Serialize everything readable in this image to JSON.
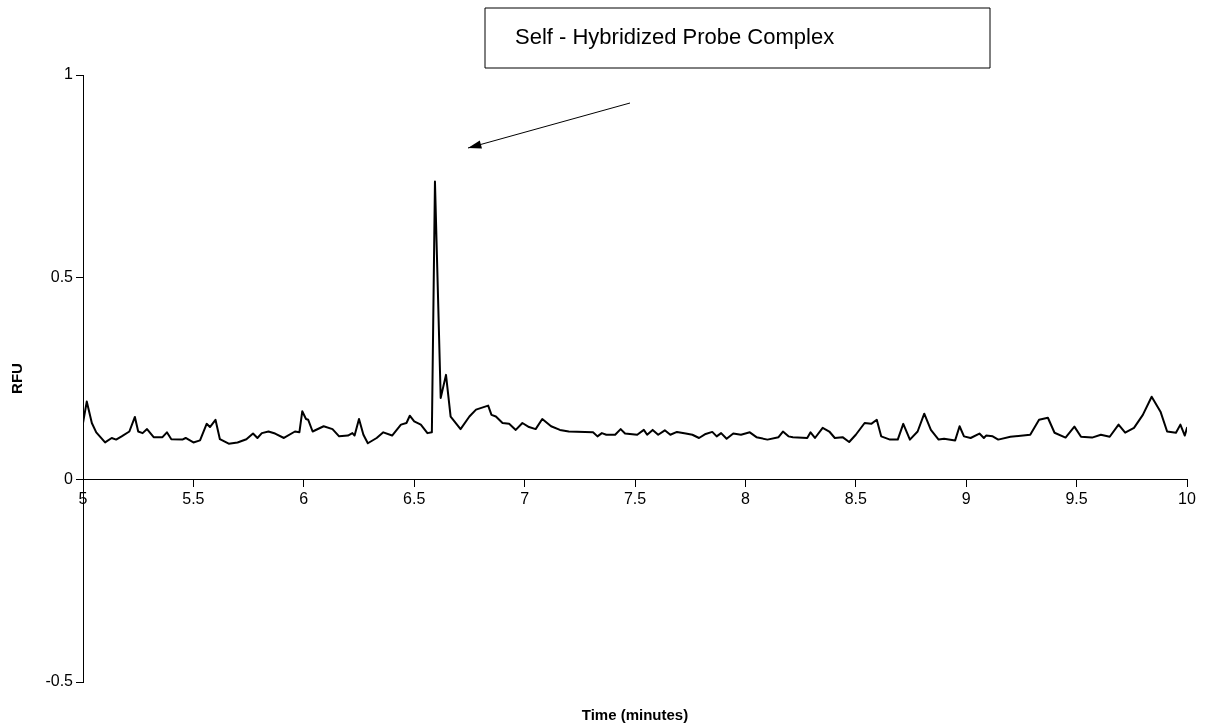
{
  "chart_data": {
    "type": "line",
    "xlabel": "Time (minutes)",
    "ylabel": "RFU",
    "annotations": [
      "Self - Hybridized Probe Complex"
    ],
    "xlim": [
      5,
      10
    ],
    "xticks": [
      5,
      5.5,
      6,
      6.5,
      7,
      7.5,
      8,
      8.5,
      9,
      9.5,
      10
    ],
    "ylim": [
      -0.5,
      1
    ],
    "yticks": [
      -0.5,
      0,
      0.5,
      1
    ],
    "marker": "none",
    "series": [
      {
        "color": "#000000",
        "x": [
          5.0,
          5.017,
          5.04,
          5.06,
          5.1,
          5.13,
          5.15,
          5.175,
          5.21,
          5.235,
          5.25,
          5.27,
          5.29,
          5.32,
          5.36,
          5.38,
          5.4,
          5.45,
          5.465,
          5.5,
          5.53,
          5.56,
          5.575,
          5.6,
          5.62,
          5.66,
          5.7,
          5.74,
          5.77,
          5.79,
          5.81,
          5.84,
          5.87,
          5.91,
          5.96,
          5.98,
          5.993,
          6.01,
          6.02,
          6.04,
          6.09,
          6.13,
          6.16,
          6.2,
          6.22,
          6.23,
          6.25,
          6.27,
          6.29,
          6.33,
          6.36,
          6.4,
          6.44,
          6.465,
          6.48,
          6.5,
          6.53,
          6.56,
          6.58,
          6.594,
          6.62,
          6.644,
          6.665,
          6.71,
          6.75,
          6.78,
          6.835,
          6.85,
          6.87,
          6.9,
          6.93,
          6.96,
          6.99,
          7.02,
          7.05,
          7.08,
          7.12,
          7.16,
          7.2,
          7.31,
          7.33,
          7.35,
          7.37,
          7.41,
          7.435,
          7.455,
          7.51,
          7.54,
          7.555,
          7.58,
          7.605,
          7.635,
          7.66,
          7.69,
          7.73,
          7.76,
          7.79,
          7.82,
          7.85,
          7.87,
          7.89,
          7.915,
          7.945,
          7.98,
          8.02,
          8.05,
          8.1,
          8.15,
          8.17,
          8.195,
          8.215,
          8.28,
          8.295,
          8.315,
          8.35,
          8.38,
          8.405,
          8.44,
          8.47,
          8.5,
          8.54,
          8.57,
          8.595,
          8.615,
          8.655,
          8.69,
          8.715,
          8.745,
          8.78,
          8.81,
          8.84,
          8.875,
          8.9,
          8.95,
          8.97,
          8.99,
          9.02,
          9.06,
          9.08,
          9.09,
          9.12,
          9.145,
          9.2,
          9.29,
          9.33,
          9.37,
          9.4,
          9.45,
          9.49,
          9.52,
          9.57,
          9.61,
          9.65,
          9.69,
          9.72,
          9.76,
          9.8,
          9.84,
          9.88,
          9.91,
          9.95,
          9.97,
          9.99,
          10.0
        ],
        "values": [
          0.14,
          0.193,
          0.14,
          0.117,
          0.092,
          0.103,
          0.099,
          0.107,
          0.119,
          0.155,
          0.119,
          0.115,
          0.125,
          0.105,
          0.105,
          0.117,
          0.1,
          0.099,
          0.103,
          0.092,
          0.097,
          0.138,
          0.13,
          0.148,
          0.1,
          0.089,
          0.092,
          0.1,
          0.114,
          0.103,
          0.115,
          0.119,
          0.114,
          0.103,
          0.119,
          0.117,
          0.169,
          0.15,
          0.148,
          0.119,
          0.132,
          0.125,
          0.107,
          0.109,
          0.115,
          0.109,
          0.15,
          0.111,
          0.09,
          0.103,
          0.117,
          0.109,
          0.136,
          0.14,
          0.158,
          0.144,
          0.136,
          0.115,
          0.117,
          0.737,
          0.202,
          0.259,
          0.156,
          0.125,
          0.156,
          0.173,
          0.183,
          0.16,
          0.156,
          0.14,
          0.138,
          0.123,
          0.14,
          0.13,
          0.125,
          0.15,
          0.132,
          0.123,
          0.119,
          0.117,
          0.107,
          0.115,
          0.111,
          0.111,
          0.125,
          0.114,
          0.111,
          0.123,
          0.111,
          0.123,
          0.111,
          0.122,
          0.111,
          0.118,
          0.114,
          0.111,
          0.103,
          0.113,
          0.118,
          0.107,
          0.115,
          0.101,
          0.114,
          0.111,
          0.117,
          0.105,
          0.099,
          0.105,
          0.119,
          0.107,
          0.105,
          0.103,
          0.117,
          0.103,
          0.128,
          0.119,
          0.103,
          0.105,
          0.093,
          0.111,
          0.14,
          0.138,
          0.148,
          0.107,
          0.099,
          0.099,
          0.138,
          0.099,
          0.119,
          0.163,
          0.123,
          0.099,
          0.101,
          0.097,
          0.132,
          0.107,
          0.103,
          0.114,
          0.103,
          0.109,
          0.107,
          0.099,
          0.106,
          0.111,
          0.148,
          0.153,
          0.116,
          0.104,
          0.131,
          0.106,
          0.104,
          0.111,
          0.106,
          0.136,
          0.116,
          0.128,
          0.16,
          0.205,
          0.168,
          0.119,
          0.116,
          0.136,
          0.109,
          0.128
        ]
      }
    ]
  }
}
